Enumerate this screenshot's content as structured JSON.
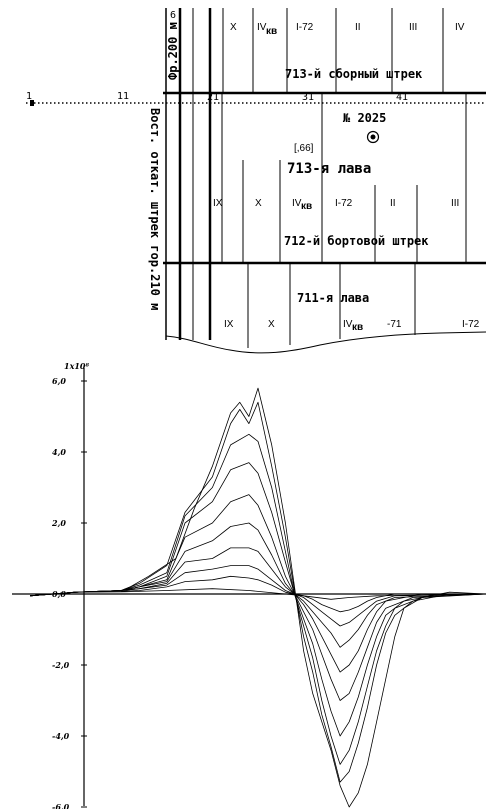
{
  "map": {
    "left_labels": {
      "top": "Фр.200 м",
      "bottom": "Вост. откат. штрек гор.210 м"
    },
    "top_layers": [
      "X",
      "IV",
      "I-72",
      "II",
      "III",
      "IV"
    ],
    "top_layer_sub": "кв",
    "top_header_small": "6",
    "drift_713": "713-й сборный штрек",
    "scale_labels": [
      "1",
      "11",
      "21",
      "31",
      "41"
    ],
    "well_label": "№ 2025",
    "point_label": "[,66]",
    "face_713": "713-я лава",
    "mid_layers": [
      "IX",
      "X",
      "IV",
      "I-72",
      "II",
      "III"
    ],
    "mid_layer_sub": "кв",
    "drift_712": "712-й бортовой штрек",
    "face_711": "711-я лава",
    "low_layers": [
      "IX",
      "X",
      "IV",
      "-71",
      "I-72"
    ],
    "low_layer_sub": "кв"
  },
  "chart_data": {
    "type": "line",
    "title": "",
    "ylabel": "1x10⁸",
    "xlabel": "",
    "y_ticks": [
      "6,0",
      "4,0",
      "2,0",
      "0,0",
      "-2,0",
      "-4,0",
      "-6,0"
    ],
    "y_tick_values": [
      6,
      4,
      2,
      0,
      -2,
      -4,
      -6
    ],
    "ylim": [
      -6.3,
      6.3
    ],
    "x_range": [
      0,
      100
    ],
    "series": [
      {
        "values": [
          [
            0,
            -0.05
          ],
          [
            10,
            0.05
          ],
          [
            20,
            0.1
          ],
          [
            22,
            0.2
          ],
          [
            26,
            0.5
          ],
          [
            32,
            1.0
          ],
          [
            36,
            2.4
          ],
          [
            40,
            3.6
          ],
          [
            44,
            5.1
          ],
          [
            46,
            5.4
          ],
          [
            48,
            5.0
          ],
          [
            50,
            5.8
          ],
          [
            53,
            4.2
          ],
          [
            56,
            2.0
          ],
          [
            58,
            0.2
          ],
          [
            60,
            -1.6
          ],
          [
            62,
            -2.8
          ],
          [
            64,
            -3.6
          ],
          [
            66,
            -4.4
          ],
          [
            68,
            -5.4
          ],
          [
            70,
            -6.0
          ],
          [
            72,
            -5.6
          ],
          [
            74,
            -4.8
          ],
          [
            76,
            -3.6
          ],
          [
            78,
            -2.4
          ],
          [
            80,
            -1.2
          ],
          [
            82,
            -0.4
          ],
          [
            86,
            -0.1
          ],
          [
            92,
            0.05
          ],
          [
            100,
            0
          ]
        ]
      },
      {
        "values": [
          [
            0,
            -0.05
          ],
          [
            10,
            0.05
          ],
          [
            20,
            0.1
          ],
          [
            24,
            0.3
          ],
          [
            30,
            0.8
          ],
          [
            34,
            2.3
          ],
          [
            40,
            3.3
          ],
          [
            44,
            4.8
          ],
          [
            46,
            5.2
          ],
          [
            48,
            4.8
          ],
          [
            50,
            5.4
          ],
          [
            53,
            3.6
          ],
          [
            56,
            1.6
          ],
          [
            58,
            0.1
          ],
          [
            60,
            -1.2
          ],
          [
            62,
            -2.2
          ],
          [
            64,
            -3.4
          ],
          [
            66,
            -4.3
          ],
          [
            68,
            -5.3
          ],
          [
            70,
            -5.0
          ],
          [
            72,
            -4.2
          ],
          [
            74,
            -3.2
          ],
          [
            76,
            -2.0
          ],
          [
            78,
            -1.1
          ],
          [
            80,
            -0.6
          ],
          [
            84,
            -0.2
          ],
          [
            92,
            0
          ],
          [
            100,
            0
          ]
        ]
      },
      {
        "values": [
          [
            0,
            -0.05
          ],
          [
            10,
            0.05
          ],
          [
            20,
            0.1
          ],
          [
            24,
            0.25
          ],
          [
            30,
            0.6
          ],
          [
            34,
            2.2
          ],
          [
            40,
            3.0
          ],
          [
            44,
            4.2
          ],
          [
            48,
            4.5
          ],
          [
            50,
            4.3
          ],
          [
            53,
            3.0
          ],
          [
            56,
            1.2
          ],
          [
            58,
            0
          ],
          [
            60,
            -0.9
          ],
          [
            62,
            -1.8
          ],
          [
            64,
            -3.0
          ],
          [
            66,
            -4.0
          ],
          [
            68,
            -4.8
          ],
          [
            70,
            -4.4
          ],
          [
            72,
            -3.6
          ],
          [
            74,
            -2.6
          ],
          [
            76,
            -1.6
          ],
          [
            78,
            -0.9
          ],
          [
            80,
            -0.4
          ],
          [
            86,
            -0.1
          ],
          [
            100,
            0
          ]
        ]
      },
      {
        "values": [
          [
            0,
            -0.05
          ],
          [
            10,
            0.05
          ],
          [
            20,
            0.1
          ],
          [
            24,
            0.2
          ],
          [
            30,
            0.5
          ],
          [
            34,
            2.0
          ],
          [
            40,
            2.6
          ],
          [
            44,
            3.5
          ],
          [
            48,
            3.7
          ],
          [
            50,
            3.4
          ],
          [
            53,
            2.3
          ],
          [
            56,
            0.9
          ],
          [
            58,
            0
          ],
          [
            60,
            -0.7
          ],
          [
            62,
            -1.4
          ],
          [
            64,
            -2.4
          ],
          [
            66,
            -3.3
          ],
          [
            68,
            -4.0
          ],
          [
            70,
            -3.6
          ],
          [
            72,
            -2.9
          ],
          [
            74,
            -2.0
          ],
          [
            76,
            -1.2
          ],
          [
            78,
            -0.6
          ],
          [
            82,
            -0.2
          ],
          [
            90,
            0
          ],
          [
            100,
            0
          ]
        ]
      },
      {
        "values": [
          [
            0,
            -0.05
          ],
          [
            10,
            0.05
          ],
          [
            20,
            0.1
          ],
          [
            24,
            0.2
          ],
          [
            30,
            0.4
          ],
          [
            34,
            1.6
          ],
          [
            40,
            2.0
          ],
          [
            44,
            2.6
          ],
          [
            48,
            2.8
          ],
          [
            50,
            2.5
          ],
          [
            53,
            1.6
          ],
          [
            56,
            0.5
          ],
          [
            58,
            0
          ],
          [
            60,
            -0.5
          ],
          [
            62,
            -1.0
          ],
          [
            64,
            -1.7
          ],
          [
            66,
            -2.4
          ],
          [
            68,
            -3.0
          ],
          [
            70,
            -2.8
          ],
          [
            72,
            -2.2
          ],
          [
            74,
            -1.5
          ],
          [
            76,
            -0.8
          ],
          [
            78,
            -0.4
          ],
          [
            84,
            -0.1
          ],
          [
            100,
            0
          ]
        ]
      },
      {
        "values": [
          [
            0,
            -0.05
          ],
          [
            10,
            0.05
          ],
          [
            20,
            0.1
          ],
          [
            24,
            0.2
          ],
          [
            30,
            0.35
          ],
          [
            34,
            1.2
          ],
          [
            40,
            1.5
          ],
          [
            44,
            1.9
          ],
          [
            48,
            2.0
          ],
          [
            50,
            1.8
          ],
          [
            53,
            1.1
          ],
          [
            56,
            0.3
          ],
          [
            58,
            0
          ],
          [
            60,
            -0.3
          ],
          [
            62,
            -0.7
          ],
          [
            64,
            -1.2
          ],
          [
            66,
            -1.7
          ],
          [
            68,
            -2.2
          ],
          [
            70,
            -2.0
          ],
          [
            72,
            -1.6
          ],
          [
            74,
            -1.0
          ],
          [
            76,
            -0.5
          ],
          [
            78,
            -0.2
          ],
          [
            86,
            0
          ],
          [
            100,
            0
          ]
        ]
      },
      {
        "values": [
          [
            0,
            -0.05
          ],
          [
            10,
            0.05
          ],
          [
            20,
            0.1
          ],
          [
            24,
            0.15
          ],
          [
            30,
            0.3
          ],
          [
            34,
            0.9
          ],
          [
            40,
            1.0
          ],
          [
            44,
            1.3
          ],
          [
            48,
            1.3
          ],
          [
            50,
            1.2
          ],
          [
            53,
            0.7
          ],
          [
            56,
            0.2
          ],
          [
            58,
            0
          ],
          [
            60,
            -0.2
          ],
          [
            62,
            -0.5
          ],
          [
            64,
            -0.8
          ],
          [
            66,
            -1.1
          ],
          [
            68,
            -1.5
          ],
          [
            70,
            -1.3
          ],
          [
            72,
            -1.0
          ],
          [
            74,
            -0.6
          ],
          [
            76,
            -0.3
          ],
          [
            80,
            -0.1
          ],
          [
            100,
            0
          ]
        ]
      },
      {
        "values": [
          [
            0,
            -0.05
          ],
          [
            10,
            0.05
          ],
          [
            20,
            0.1
          ],
          [
            24,
            0.15
          ],
          [
            30,
            0.25
          ],
          [
            34,
            0.6
          ],
          [
            40,
            0.7
          ],
          [
            44,
            0.8
          ],
          [
            48,
            0.8
          ],
          [
            50,
            0.7
          ],
          [
            53,
            0.4
          ],
          [
            56,
            0.1
          ],
          [
            58,
            0
          ],
          [
            60,
            -0.1
          ],
          [
            62,
            -0.3
          ],
          [
            64,
            -0.5
          ],
          [
            66,
            -0.7
          ],
          [
            68,
            -0.9
          ],
          [
            70,
            -0.8
          ],
          [
            72,
            -0.6
          ],
          [
            74,
            -0.4
          ],
          [
            76,
            -0.2
          ],
          [
            80,
            -0.05
          ],
          [
            100,
            0
          ]
        ]
      },
      {
        "values": [
          [
            0,
            -0.05
          ],
          [
            10,
            0.05
          ],
          [
            20,
            0.08
          ],
          [
            24,
            0.1
          ],
          [
            30,
            0.2
          ],
          [
            34,
            0.35
          ],
          [
            40,
            0.4
          ],
          [
            44,
            0.5
          ],
          [
            48,
            0.45
          ],
          [
            50,
            0.4
          ],
          [
            53,
            0.25
          ],
          [
            56,
            0.05
          ],
          [
            58,
            0
          ],
          [
            60,
            -0.05
          ],
          [
            62,
            -0.15
          ],
          [
            64,
            -0.3
          ],
          [
            66,
            -0.4
          ],
          [
            68,
            -0.5
          ],
          [
            70,
            -0.45
          ],
          [
            72,
            -0.35
          ],
          [
            74,
            -0.2
          ],
          [
            76,
            -0.1
          ],
          [
            80,
            0
          ],
          [
            100,
            0
          ]
        ]
      },
      {
        "values": [
          [
            0,
            -0.05
          ],
          [
            10,
            0.05
          ],
          [
            20,
            0.06
          ],
          [
            30,
            0.1
          ],
          [
            40,
            0.15
          ],
          [
            48,
            0.1
          ],
          [
            56,
            0
          ],
          [
            60,
            -0.05
          ],
          [
            66,
            -0.15
          ],
          [
            70,
            -0.1
          ],
          [
            76,
            -0.05
          ],
          [
            100,
            0
          ]
        ]
      }
    ]
  }
}
